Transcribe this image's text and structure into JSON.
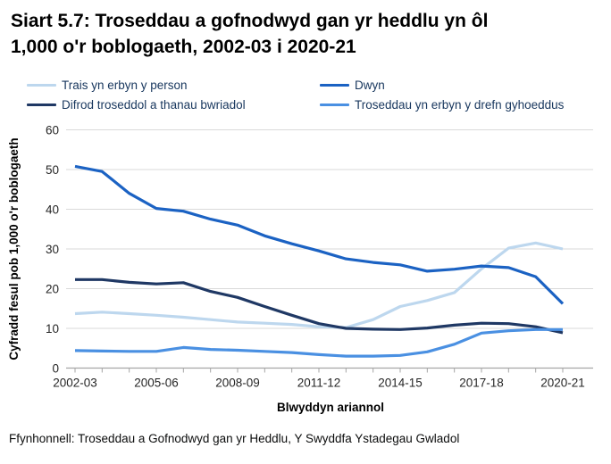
{
  "ui": {
    "title_lines": [
      "Siart 5.7: Troseddau a gofnodwyd gan yr heddlu yn ôl",
      "1,000 o'r boblogaeth, 2002-03 i 2020-21"
    ],
    "source": "Ffynhonnell: Troseddau a Gofnodwyd gan yr Heddlu, Y Swyddfa Ystadegau Gwladol"
  },
  "colors": {
    "gridline": "#D9D9D9",
    "axis": "#A6A6A6",
    "legend_text": "#17365D",
    "title_text": "#000000"
  },
  "chart_data": {
    "type": "line",
    "title": "Siart 5.7: Troseddau a gofnodwyd gan yr heddlu yn ôl 1,000 o'r boblogaeth, 2002-03 i 2020-21",
    "xlabel": "Blwyddyn ariannol",
    "ylabel": "Cyfradd fesul pob 1,000 o'r boblogaeth",
    "ylim": [
      0,
      60
    ],
    "yticks": [
      0,
      10,
      20,
      30,
      40,
      50,
      60
    ],
    "grid": "horizontal",
    "legend_position": "top",
    "categories": [
      "2002-03",
      "2003-04",
      "2004-05",
      "2005-06",
      "2006-07",
      "2007-08",
      "2008-09",
      "2009-10",
      "2010-11",
      "2011-12",
      "2012-13",
      "2013-14",
      "2014-15",
      "2015-16",
      "2016-17",
      "2017-18",
      "2018-19",
      "2019-20",
      "2020-21"
    ],
    "xtick_labels_shown": [
      "2002-03",
      "2005-06",
      "2008-09",
      "2011-12",
      "2014-15",
      "2017-18",
      "2020-21"
    ],
    "series": [
      {
        "name": "Trais yn erbyn y person",
        "color": "#BDD7EE",
        "values": [
          13.7,
          14.1,
          13.7,
          13.3,
          12.8,
          12.2,
          11.6,
          11.3,
          11.0,
          10.4,
          10.2,
          12.2,
          15.5,
          17.0,
          19.0,
          25.0,
          30.2,
          31.5,
          30.0
        ]
      },
      {
        "name": "Dwyn",
        "color": "#1B62C3",
        "values": [
          50.8,
          49.5,
          44.0,
          40.2,
          39.5,
          37.5,
          36.0,
          33.3,
          31.3,
          29.5,
          27.5,
          26.6,
          26.0,
          24.4,
          24.9,
          25.7,
          25.3,
          23.0,
          16.2
        ]
      },
      {
        "name": "Difrod troseddol a thanau bwriadol",
        "color": "#1F3864",
        "values": [
          22.3,
          22.3,
          21.6,
          21.2,
          21.5,
          19.3,
          17.8,
          15.5,
          13.3,
          11.2,
          10.0,
          9.8,
          9.7,
          10.1,
          10.8,
          11.3,
          11.2,
          10.4,
          8.9
        ]
      },
      {
        "name": "Troseddau yn erbyn y drefn gyhoeddus",
        "color": "#4A90E2",
        "values": [
          4.4,
          4.3,
          4.2,
          4.2,
          5.2,
          4.7,
          4.5,
          4.2,
          3.9,
          3.4,
          3.0,
          3.0,
          3.2,
          4.1,
          6.0,
          8.8,
          9.4,
          9.7,
          9.7
        ]
      }
    ]
  }
}
